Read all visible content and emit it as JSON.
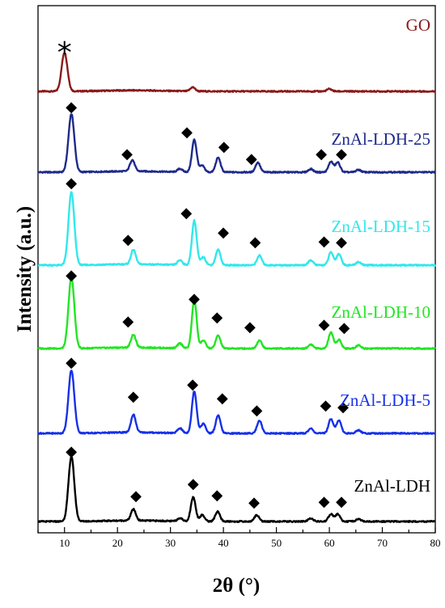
{
  "chart_data": {
    "type": "line",
    "xlabel": "2θ (°)",
    "ylabel": "Intensity (a.u.)",
    "xlim": [
      5,
      80
    ],
    "xticks": [
      10,
      20,
      30,
      40,
      50,
      60,
      70,
      80
    ],
    "y_ticks_shown": false,
    "grid": false,
    "legend": "inline-labels",
    "series": [
      {
        "name": "GO",
        "color": "#8b1a1a",
        "baseline": 0,
        "peaks": [
          [
            10.0,
            48
          ],
          [
            34.2,
            5
          ],
          [
            60.0,
            3
          ]
        ],
        "markers": [
          {
            "x": 10.0,
            "y": 50,
            "symbol": "*"
          }
        ]
      },
      {
        "name": "ZnAl-LDH-25",
        "color": "#1f2a8a",
        "baseline": 0,
        "peaks": [
          [
            11.3,
            72
          ],
          [
            22.8,
            14
          ],
          [
            31.8,
            4
          ],
          [
            34.5,
            40
          ],
          [
            36.0,
            8
          ],
          [
            39.0,
            18
          ],
          [
            46.5,
            12
          ],
          [
            56.5,
            4
          ],
          [
            60.3,
            13
          ],
          [
            61.6,
            12
          ],
          [
            65.5,
            3
          ]
        ],
        "markers": [
          {
            "x": 11.3,
            "y": 82,
            "symbol": "◆"
          },
          {
            "x": 21.8,
            "y": 24,
            "symbol": "◆"
          },
          {
            "x": 33.1,
            "y": 51,
            "symbol": "◆"
          },
          {
            "x": 40.1,
            "y": 33,
            "symbol": "◆"
          },
          {
            "x": 45.3,
            "y": 18,
            "symbol": "◆"
          },
          {
            "x": 58.5,
            "y": 24,
            "symbol": "◆"
          },
          {
            "x": 62.3,
            "y": 24,
            "symbol": "◆"
          }
        ]
      },
      {
        "name": "ZnAl-LDH-15",
        "color": "#30e8ec",
        "baseline": 0,
        "peaks": [
          [
            11.3,
            90
          ],
          [
            23.0,
            18
          ],
          [
            31.8,
            6
          ],
          [
            34.5,
            55
          ],
          [
            36.2,
            10
          ],
          [
            39.0,
            19
          ],
          [
            46.8,
            12
          ],
          [
            56.5,
            6
          ],
          [
            60.3,
            16
          ],
          [
            61.8,
            14
          ],
          [
            65.5,
            4
          ]
        ],
        "markers": [
          {
            "x": 11.3,
            "y": 103,
            "symbol": "◆"
          },
          {
            "x": 22.0,
            "y": 33,
            "symbol": "◆"
          },
          {
            "x": 33.0,
            "y": 66,
            "symbol": "◆"
          },
          {
            "x": 40.0,
            "y": 42,
            "symbol": "◆"
          },
          {
            "x": 46.0,
            "y": 30,
            "symbol": "◆"
          },
          {
            "x": 59.0,
            "y": 31,
            "symbol": "◆"
          },
          {
            "x": 62.3,
            "y": 30,
            "symbol": "◆"
          }
        ]
      },
      {
        "name": "ZnAl-LDH-10",
        "color": "#22e622",
        "baseline": 0,
        "peaks": [
          [
            11.3,
            88
          ],
          [
            23.0,
            16
          ],
          [
            31.8,
            6
          ],
          [
            34.5,
            60
          ],
          [
            36.2,
            10
          ],
          [
            39.0,
            16
          ],
          [
            46.8,
            10
          ],
          [
            56.5,
            5
          ],
          [
            60.3,
            20
          ],
          [
            61.8,
            11
          ],
          [
            65.5,
            4
          ]
        ],
        "markers": [
          {
            "x": 11.3,
            "y": 92,
            "symbol": "◆"
          },
          {
            "x": 22.0,
            "y": 35,
            "symbol": "◆"
          },
          {
            "x": 34.5,
            "y": 63,
            "symbol": "◆"
          },
          {
            "x": 38.8,
            "y": 40,
            "symbol": "◆"
          },
          {
            "x": 45.0,
            "y": 28,
            "symbol": "◆"
          },
          {
            "x": 59.0,
            "y": 31,
            "symbol": "◆"
          },
          {
            "x": 62.8,
            "y": 27,
            "symbol": "◆"
          }
        ]
      },
      {
        "name": "ZnAl-LDH-5",
        "color": "#1530ea",
        "baseline": 0,
        "peaks": [
          [
            11.3,
            78
          ],
          [
            23.0,
            22
          ],
          [
            31.8,
            6
          ],
          [
            34.5,
            52
          ],
          [
            36.2,
            12
          ],
          [
            39.0,
            22
          ],
          [
            46.8,
            16
          ],
          [
            56.5,
            6
          ],
          [
            60.3,
            18
          ],
          [
            61.8,
            16
          ],
          [
            65.5,
            4
          ]
        ],
        "markers": [
          {
            "x": 11.3,
            "y": 89,
            "symbol": "◆"
          },
          {
            "x": 23.0,
            "y": 47,
            "symbol": "◆"
          },
          {
            "x": 34.2,
            "y": 62,
            "symbol": "◆"
          },
          {
            "x": 39.8,
            "y": 45,
            "symbol": "◆"
          },
          {
            "x": 46.3,
            "y": 30,
            "symbol": "◆"
          },
          {
            "x": 59.3,
            "y": 36,
            "symbol": "◆"
          },
          {
            "x": 62.6,
            "y": 34,
            "symbol": "◆"
          }
        ]
      },
      {
        "name": "ZnAl-LDH",
        "color": "#000000",
        "baseline": 0,
        "peaks": [
          [
            11.3,
            80
          ],
          [
            23.0,
            14
          ],
          [
            31.8,
            4
          ],
          [
            34.3,
            30
          ],
          [
            36.0,
            8
          ],
          [
            38.9,
            12
          ],
          [
            46.3,
            8
          ],
          [
            56.5,
            4
          ],
          [
            60.3,
            9
          ],
          [
            61.6,
            9
          ],
          [
            65.5,
            3
          ]
        ],
        "markers": [
          {
            "x": 11.3,
            "y": 88,
            "symbol": "◆"
          },
          {
            "x": 23.5,
            "y": 33,
            "symbol": "◆"
          },
          {
            "x": 34.3,
            "y": 48,
            "symbol": "◆"
          },
          {
            "x": 38.8,
            "y": 34,
            "symbol": "◆"
          },
          {
            "x": 45.8,
            "y": 25,
            "symbol": "◆"
          },
          {
            "x": 59.0,
            "y": 26,
            "symbol": "◆"
          },
          {
            "x": 62.3,
            "y": 26,
            "symbol": "◆"
          }
        ]
      }
    ]
  }
}
